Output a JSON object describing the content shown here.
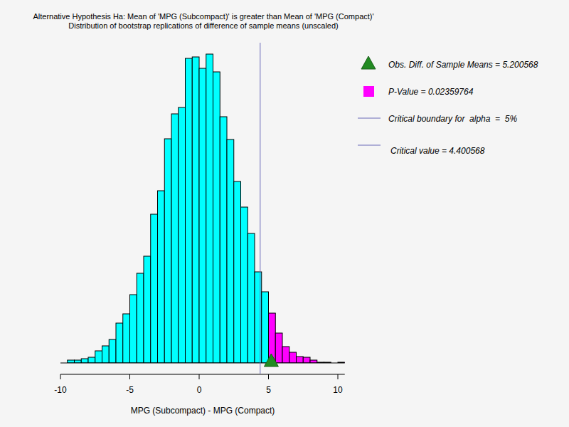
{
  "chart_data": {
    "type": "histogram",
    "title": "Alternative Hypothesis Ha: Mean of 'MPG (Subcompact)' is greater than Mean of 'MPG (Compact)'",
    "subtitle": "Distribution of bootstrap replications of difference of sample means (unscaled)",
    "x_label": "MPG (Subcompact) - MPG (Compact)",
    "bins": [
      -9.5,
      -9,
      -8.5,
      -8,
      -7.5,
      -7,
      -6.5,
      -6,
      -5.5,
      -5,
      -4.5,
      -4,
      -3.5,
      -3,
      -2.5,
      -2,
      -1.5,
      -1,
      -0.5,
      0,
      0.5,
      1,
      1.5,
      2,
      2.5,
      3,
      3.5,
      4,
      4.5,
      5,
      5.5,
      6,
      6.5,
      7,
      7.5,
      8,
      8.5,
      9,
      9.5,
      10,
      10.5
    ],
    "values": [
      4,
      4,
      6,
      8,
      17,
      24,
      33,
      56,
      69,
      96,
      126,
      150,
      209,
      242,
      315,
      350,
      359,
      428,
      430,
      414,
      434,
      409,
      346,
      314,
      255,
      219,
      182,
      128,
      100,
      70,
      42,
      23,
      15,
      9,
      8,
      4,
      1,
      1,
      0,
      1
    ],
    "colors": [
      "#00ffff",
      "#00ffff",
      "#00ffff",
      "#00ffff",
      "#00ffff",
      "#00ffff",
      "#00ffff",
      "#00ffff",
      "#00ffff",
      "#00ffff",
      "#00ffff",
      "#00ffff",
      "#00ffff",
      "#00ffff",
      "#00ffff",
      "#00ffff",
      "#00ffff",
      "#00ffff",
      "#00ffff",
      "#00ffff",
      "#00ffff",
      "#00ffff",
      "#00ffff",
      "#00ffff",
      "#00ffff",
      "#00ffff",
      "#00ffff",
      "#00ffff",
      "#00ffff",
      "#ff00ff",
      "#ff00ff",
      "#ff00ff",
      "#ff00ff",
      "#ff00ff",
      "#ff00ff",
      "#ff00ff",
      "#ff00ff",
      "#ff00ff",
      "#ff00ff",
      "#ff00ff"
    ],
    "xlim": [
      -10,
      10.5
    ],
    "xticks": [
      -10,
      -5,
      0,
      5,
      10
    ],
    "ylim": [
      0,
      450
    ],
    "tick_labels": "x",
    "observed_difference": 5.200568,
    "critical_value": 4.400568,
    "annotations": [
      {
        "text": "Obs. Diff. of Sample Means = 5.200568",
        "marker": "triangle",
        "color": "#228b22"
      },
      {
        "text": "P-Value = 0.02359764",
        "marker": "square",
        "color": "#ff00ff"
      },
      {
        "text": "Critical boundary for  alpha  =  5%",
        "marker": "line",
        "color": "#6a6ab8"
      },
      {
        "text": "Critical value = 4.400568",
        "marker": "line",
        "color": "#6a6ab8"
      }
    ]
  }
}
